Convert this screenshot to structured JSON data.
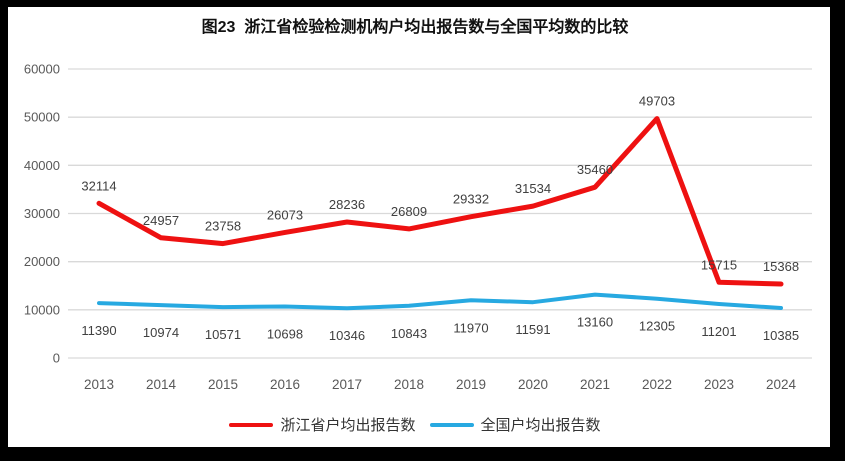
{
  "frame": {
    "border_color": "#000000",
    "background": "#ffffff"
  },
  "chart_data": {
    "type": "line",
    "title": "图23  浙江省检验检测机构户均出报告数与全国平均数的比较",
    "categories": [
      "2013",
      "2014",
      "2015",
      "2016",
      "2017",
      "2018",
      "2019",
      "2020",
      "2021",
      "2022",
      "2023",
      "2024"
    ],
    "series": [
      {
        "name": "浙江省户均出报告数",
        "color": "#ee1111",
        "values": [
          32114,
          24957,
          23758,
          26073,
          28236,
          26809,
          29332,
          31534,
          35460,
          49703,
          15715,
          15368
        ],
        "label_position": "above"
      },
      {
        "name": "全国户均出报告数",
        "color": "#27a9e1",
        "values": [
          11390,
          10974,
          10571,
          10698,
          10346,
          10843,
          11970,
          11591,
          13160,
          12305,
          11201,
          10385
        ],
        "label_position": "below"
      }
    ],
    "xlabel": "",
    "ylabel": "",
    "ylim": [
      0,
      60000
    ],
    "ytick_step": 10000,
    "yticks": [
      "0",
      "10000",
      "20000",
      "30000",
      "40000",
      "50000",
      "60000"
    ],
    "grid": "horizontal",
    "legend_position": "bottom",
    "colors": {
      "gridline": "#d9d9d9",
      "axis_label": "#595959",
      "data_label": "#404040",
      "title": "#111111"
    }
  }
}
